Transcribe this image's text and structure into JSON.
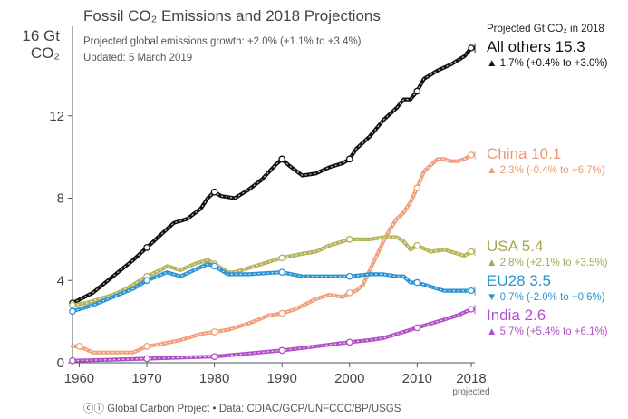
{
  "header": {
    "title": "Fossil CO₂ Emissions and 2018 Projections",
    "growth_note": "Projected global emissions growth: +2.0% (+1.1% to +3.4%)",
    "updated_note": "Updated: 5 March 2019"
  },
  "legend": {
    "heading": "Projected Gt CO₂ in 2018"
  },
  "footer": {
    "credit": "Global Carbon Project  •  Data: CDIAC/GCP/UNFCCC/BP/USGS"
  },
  "colors": {
    "all_others": "#111111",
    "china": "#f0a07a",
    "usa": "#b5b35c",
    "eu28": "#2a95d5",
    "india": "#b050c8",
    "axis": "#555555"
  },
  "chart_data": {
    "type": "line",
    "xlabel": "",
    "ylabel": "Gt CO₂",
    "ylabel_top": "16 Gt",
    "ylabel_bottom": "CO₂",
    "xlim": [
      1959,
      2018
    ],
    "ylim": [
      0,
      16
    ],
    "x_ticks": [
      "1960",
      "1970",
      "1980",
      "1990",
      "2000",
      "2010",
      "2018"
    ],
    "x_tick_sub": "projected",
    "y_ticks": [
      "0",
      "4",
      "8",
      "12"
    ],
    "grid": false,
    "legend_position": "right",
    "series": [
      {
        "key": "all_others",
        "name": "All others",
        "value_2018": "15.3",
        "growth": "1.7% (+0.4% to +3.0%)",
        "direction": "up",
        "x": [
          1959,
          1962,
          1965,
          1968,
          1970,
          1972,
          1974,
          1976,
          1978,
          1979,
          1980,
          1981,
          1983,
          1985,
          1987,
          1989,
          1990,
          1991,
          1993,
          1995,
          1997,
          1999,
          2000,
          2001,
          2003,
          2005,
          2007,
          2008,
          2009,
          2010,
          2011,
          2013,
          2015,
          2017,
          2018
        ],
        "values": [
          2.9,
          3.4,
          4.2,
          5.0,
          5.6,
          6.2,
          6.8,
          7.0,
          7.5,
          8.0,
          8.3,
          8.1,
          8.0,
          8.4,
          8.9,
          9.6,
          9.9,
          9.6,
          9.1,
          9.2,
          9.5,
          9.7,
          9.9,
          10.4,
          11.0,
          11.8,
          12.4,
          12.8,
          12.8,
          13.2,
          13.8,
          14.2,
          14.5,
          14.9,
          15.3
        ]
      },
      {
        "key": "china",
        "name": "China",
        "value_2018": "10.1",
        "growth": "2.3% (-0.4% to +6.7%)",
        "direction": "up",
        "x": [
          1959,
          1960,
          1962,
          1965,
          1968,
          1970,
          1972,
          1975,
          1978,
          1980,
          1982,
          1985,
          1988,
          1990,
          1992,
          1995,
          1997,
          1999,
          2000,
          2001,
          2002,
          2003,
          2004,
          2005,
          2006,
          2007,
          2008,
          2009,
          2010,
          2011,
          2012,
          2013,
          2014,
          2015,
          2016,
          2017,
          2018
        ],
        "values": [
          0.8,
          0.8,
          0.5,
          0.5,
          0.5,
          0.8,
          0.9,
          1.1,
          1.4,
          1.5,
          1.6,
          1.9,
          2.3,
          2.4,
          2.6,
          3.1,
          3.3,
          3.2,
          3.4,
          3.5,
          3.8,
          4.5,
          5.2,
          5.9,
          6.5,
          7.0,
          7.3,
          7.8,
          8.5,
          9.3,
          9.6,
          9.9,
          9.9,
          9.8,
          9.8,
          9.9,
          10.1
        ]
      },
      {
        "key": "usa",
        "name": "USA",
        "value_2018": "5.4",
        "growth": "2.8% (+2.1% to +3.5%)",
        "direction": "up",
        "x": [
          1959,
          1961,
          1963,
          1965,
          1967,
          1970,
          1972,
          1973,
          1975,
          1977,
          1979,
          1980,
          1982,
          1983,
          1985,
          1987,
          1990,
          1993,
          1995,
          1997,
          2000,
          2003,
          2005,
          2007,
          2008,
          2009,
          2010,
          2012,
          2014,
          2016,
          2017,
          2018
        ],
        "values": [
          2.8,
          2.9,
          3.1,
          3.3,
          3.6,
          4.2,
          4.5,
          4.7,
          4.5,
          4.8,
          5.0,
          4.8,
          4.4,
          4.4,
          4.6,
          4.8,
          5.1,
          5.3,
          5.4,
          5.7,
          6.0,
          6.0,
          6.1,
          6.1,
          5.9,
          5.5,
          5.7,
          5.4,
          5.5,
          5.3,
          5.2,
          5.4
        ]
      },
      {
        "key": "eu28",
        "name": "EU28",
        "value_2018": "3.5",
        "growth": "0.7% (-2.0% to +0.6%)",
        "direction": "down",
        "x": [
          1959,
          1962,
          1965,
          1968,
          1970,
          1973,
          1975,
          1977,
          1979,
          1980,
          1982,
          1985,
          1990,
          1993,
          1995,
          1998,
          2000,
          2003,
          2005,
          2007,
          2008,
          2009,
          2010,
          2012,
          2014,
          2016,
          2018
        ],
        "values": [
          2.5,
          2.8,
          3.2,
          3.6,
          4.0,
          4.4,
          4.2,
          4.5,
          4.8,
          4.7,
          4.3,
          4.3,
          4.4,
          4.2,
          4.2,
          4.2,
          4.2,
          4.3,
          4.3,
          4.2,
          4.2,
          3.9,
          3.9,
          3.7,
          3.5,
          3.5,
          3.5
        ]
      },
      {
        "key": "india",
        "name": "India",
        "value_2018": "2.6",
        "growth": "5.7% (+5.4% to +6.1%)",
        "direction": "up",
        "x": [
          1959,
          1965,
          1970,
          1975,
          1980,
          1985,
          1990,
          1995,
          2000,
          2003,
          2005,
          2008,
          2010,
          2012,
          2014,
          2016,
          2018
        ],
        "values": [
          0.1,
          0.15,
          0.2,
          0.25,
          0.3,
          0.45,
          0.6,
          0.8,
          1.0,
          1.1,
          1.2,
          1.5,
          1.7,
          1.9,
          2.1,
          2.3,
          2.6
        ]
      }
    ]
  }
}
